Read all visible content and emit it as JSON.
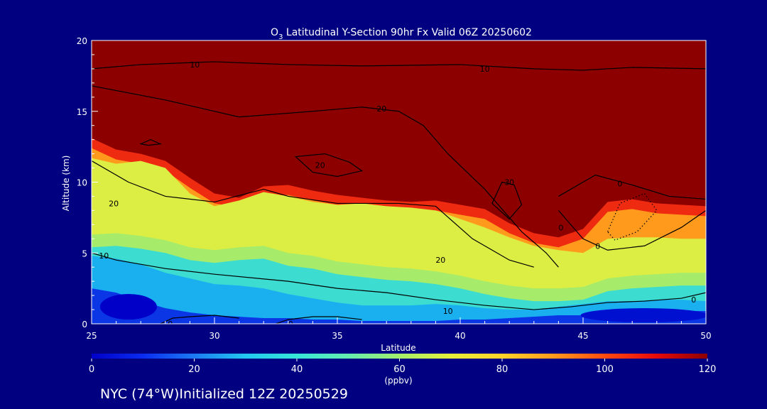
{
  "chart_data": {
    "type": "heatmap",
    "title": {
      "prefix": "O",
      "subscript": "3",
      "text": " Latitudinal Y-Section 90hr  Fx Valid 06Z 20250602"
    },
    "xlabel": "Latitude",
    "ylabel": "Altitude (km)",
    "xlim": [
      25,
      50
    ],
    "ylim": [
      0,
      20
    ],
    "x_ticks": [
      "25",
      "30",
      "35",
      "40",
      "45",
      "50"
    ],
    "y_ticks": [
      "0",
      "5",
      "10",
      "15",
      "20"
    ],
    "colorbar": {
      "label": "(ppbv)",
      "range": [
        0,
        120
      ],
      "ticks": [
        "0",
        "20",
        "40",
        "60",
        "80",
        "100",
        "120"
      ],
      "colors": [
        "#0000c8",
        "#0a2cf0",
        "#1c7af2",
        "#22c8f0",
        "#36e6d8",
        "#64ecb0",
        "#a4ee6c",
        "#e6f03a",
        "#ffd42a",
        "#ff9a1c",
        "#ff4a10",
        "#e60a0a",
        "#8c0000"
      ]
    },
    "ozone_boundary_km": {
      "latitude": [
        25,
        26,
        27,
        28,
        29,
        30,
        31,
        32,
        33,
        34,
        35,
        36,
        37,
        38,
        39,
        40,
        41,
        42,
        43,
        44,
        45,
        46,
        47,
        48,
        49,
        50
      ],
      "red_top": [
        14.0,
        13.2,
        12.9,
        12.4,
        11.2,
        10.1,
        9.8,
        10.6,
        10.7,
        10.3,
        10.0,
        9.8,
        9.6,
        9.5,
        9.6,
        9.3,
        9.0,
        8.0,
        7.3,
        7.0,
        7.6,
        9.5,
        9.7,
        9.4,
        9.3,
        9.2
      ],
      "yellow_top": [
        11.7,
        11.3,
        11.5,
        11.0,
        9.2,
        8.3,
        8.7,
        9.3,
        9.0,
        8.6,
        8.4,
        8.5,
        8.3,
        8.2,
        8.0,
        7.4,
        6.8,
        6.1,
        5.5,
        5.2,
        5.0,
        6.0,
        6.1,
        6.1,
        6.0,
        6.0
      ],
      "green_top": [
        6.3,
        6.4,
        6.2,
        5.9,
        5.4,
        5.2,
        5.4,
        5.5,
        5.0,
        4.8,
        4.4,
        4.2,
        4.0,
        3.9,
        3.7,
        3.4,
        3.0,
        2.7,
        2.5,
        2.5,
        2.6,
        3.2,
        3.4,
        3.5,
        3.6,
        3.6
      ],
      "cyan_top": [
        4.8,
        4.6,
        4.2,
        3.6,
        3.2,
        2.8,
        2.7,
        2.5,
        2.1,
        1.8,
        1.5,
        1.3,
        1.3,
        1.3,
        1.4,
        1.3,
        1.1,
        1.0,
        1.0,
        1.2,
        1.4,
        1.6,
        1.6,
        1.7,
        1.7,
        1.6
      ],
      "blue_top": [
        2.5,
        2.2,
        1.6,
        1.1,
        0.8,
        0.6,
        0.5,
        0.4,
        0.4,
        0.3,
        0.3,
        0.2,
        0.2,
        0.2,
        0.2,
        0.3,
        0.3,
        0.4,
        0.5,
        0.6,
        0.6,
        0.7,
        0.8,
        0.8,
        0.9,
        0.9
      ]
    },
    "contours": [
      {
        "label": "10",
        "lat": [
          25,
          27,
          30,
          33,
          36,
          40,
          43,
          45,
          47,
          50
        ],
        "alt": [
          18.0,
          18.3,
          18.5,
          18.3,
          18.2,
          18.3,
          18.0,
          17.9,
          18.1,
          18.0
        ]
      },
      {
        "label": "20",
        "lat": [
          25,
          28,
          31,
          34,
          36,
          37.5,
          38.5,
          39.5,
          41,
          42.5,
          43.5,
          44
        ],
        "alt": [
          16.8,
          15.8,
          14.6,
          15.0,
          15.3,
          15.0,
          14.0,
          12.0,
          9.5,
          6.5,
          5.0,
          4.0
        ]
      },
      {
        "label": "20",
        "lat": [
          25,
          26.5,
          28,
          30,
          32,
          33,
          35,
          37.5,
          39,
          40.5,
          42,
          43
        ],
        "alt": [
          11.5,
          10.0,
          9.0,
          8.6,
          9.5,
          9.0,
          8.5,
          8.5,
          8.3,
          6.0,
          4.5,
          4.0
        ]
      },
      {
        "label": "10",
        "lat": [
          25,
          26,
          28,
          30,
          33,
          35,
          37,
          39,
          41,
          43,
          44.5,
          46,
          47.5,
          49,
          50
        ],
        "alt": [
          5.0,
          4.5,
          3.9,
          3.5,
          3.0,
          2.5,
          2.2,
          1.7,
          1.3,
          1.0,
          1.2,
          1.5,
          1.6,
          1.8,
          2.2
        ]
      },
      {
        "label": "0",
        "lat": [
          44,
          45,
          46,
          47.5,
          49,
          50
        ],
        "alt": [
          8.0,
          6.0,
          5.2,
          5.5,
          6.8,
          8.0
        ]
      },
      {
        "label": "0",
        "lat": [
          44,
          45.5,
          47,
          48.5,
          50
        ],
        "alt": [
          9.0,
          10.5,
          9.8,
          9.0,
          8.8
        ]
      },
      {
        "label": "0",
        "lat": [
          27.8,
          28.3,
          29,
          30,
          31
        ],
        "alt": [
          0.0,
          0.4,
          0.5,
          0.6,
          0.4
        ]
      },
      {
        "label": "0",
        "lat": [
          32.5,
          33,
          34,
          35,
          36
        ],
        "alt": [
          0.0,
          0.3,
          0.5,
          0.5,
          0.3
        ]
      }
    ],
    "closed_contours": [
      {
        "label": "20",
        "lat": [
          33.3,
          34.5,
          35.5,
          36.0,
          35.0,
          34.0,
          33.3
        ],
        "alt": [
          11.8,
          12.0,
          11.4,
          10.8,
          10.4,
          10.7,
          11.8
        ]
      },
      {
        "label": "30",
        "lat": [
          41.3,
          41.7,
          42.2,
          42.5,
          42.0,
          41.3
        ],
        "alt": [
          8.5,
          10.0,
          9.8,
          8.4,
          7.4,
          8.5
        ]
      },
      {
        "label": "",
        "lat": [
          27.0,
          27.4,
          27.8,
          27.3,
          27.0
        ],
        "alt": [
          12.7,
          13.0,
          12.7,
          12.6,
          12.7
        ]
      }
    ],
    "dotted_contours": [
      {
        "label": "",
        "lat": [
          46.0,
          46.5,
          47.5,
          48.0,
          47.2,
          46.3,
          46.0
        ],
        "alt": [
          6.5,
          8.5,
          9.2,
          8.0,
          6.5,
          5.9,
          6.5
        ]
      }
    ],
    "contour_labels": [
      {
        "text": "10",
        "lat": 29.2,
        "alt": 18.3
      },
      {
        "text": "10",
        "lat": 41.0,
        "alt": 18.0
      },
      {
        "text": "20",
        "lat": 36.8,
        "alt": 15.2
      },
      {
        "text": "20",
        "lat": 25.9,
        "alt": 8.5
      },
      {
        "text": "20",
        "lat": 39.2,
        "alt": 4.5
      },
      {
        "text": "10",
        "lat": 25.5,
        "alt": 4.8
      },
      {
        "text": "10",
        "lat": 39.5,
        "alt": 0.9
      },
      {
        "text": "0",
        "lat": 28.2,
        "alt": 0.0
      },
      {
        "text": "0",
        "lat": 33.1,
        "alt": 0.0
      },
      {
        "text": "0",
        "lat": 45.6,
        "alt": 5.5
      },
      {
        "text": "0",
        "lat": 49.5,
        "alt": 1.7
      },
      {
        "text": "0",
        "lat": 46.5,
        "alt": 9.9
      },
      {
        "text": "0",
        "lat": 44.1,
        "alt": 6.8
      },
      {
        "text": "30",
        "lat": 42.0,
        "alt": 10.0
      },
      {
        "text": "20",
        "lat": 34.3,
        "alt": 11.2
      }
    ]
  },
  "footer": {
    "caption": "NYC (74°W)Initialized 12Z 20250529"
  }
}
